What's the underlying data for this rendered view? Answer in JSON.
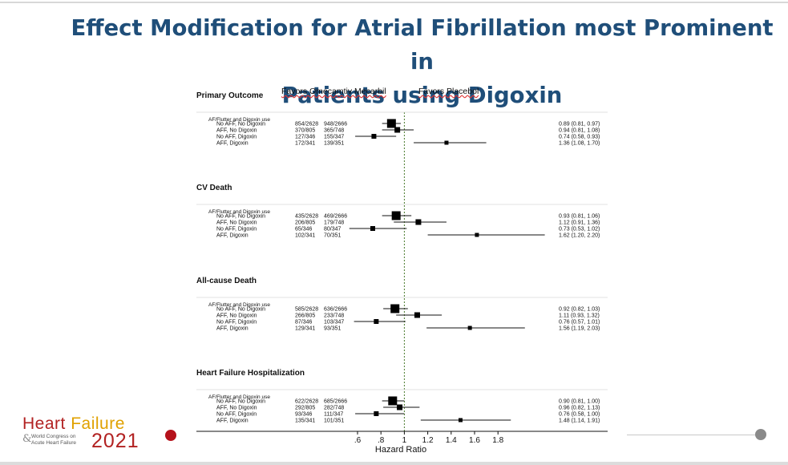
{
  "title": {
    "line1": "Effect Modification for Atrial Fibrillation most Prominent in",
    "line2": "Patients using Digoxin"
  },
  "favors_left": "Favors Omecamtiv Mecarbil",
  "favors_right": "Favors Placebol",
  "logo": {
    "heart": "Heart ",
    "failure": "Failure",
    "ampersand": "&",
    "wc_line1": "World Congress on",
    "wc_line2": "Acute Heart Failure",
    "year": "2021"
  },
  "colors": {
    "title": "#1f4e79",
    "logo_red": "#b22222",
    "logo_gold": "#e0a100",
    "reference_line": "#4a7a2c"
  },
  "chart_data": {
    "type": "forest",
    "xlabel": "Hazard Ratio",
    "xticks": [
      0.6,
      0.8,
      1,
      1.2,
      1.4,
      1.6,
      1.8
    ],
    "xtick_labels": [
      ".6",
      ".8",
      "1",
      "1.2",
      "1.4",
      "1.6",
      "1.8"
    ],
    "reference_value": 1,
    "panels": [
      {
        "title": "Primary Outcome",
        "group_label": "AF/Flutter and Digoxin use",
        "rows": [
          {
            "label": "No AFF, No Digoxin",
            "n1": "854/2628",
            "n2": "948/2666",
            "hr": 0.89,
            "lo": 0.81,
            "hi": 0.97,
            "ci_text": "0.89 (0.81, 0.97)"
          },
          {
            "label": "AFF, No Digoxin",
            "n1": "370/805",
            "n2": "365/748",
            "hr": 0.94,
            "lo": 0.81,
            "hi": 1.08,
            "ci_text": "0.94 (0.81, 1.08)"
          },
          {
            "label": "No AFF, Digoxin",
            "n1": "127/346",
            "n2": "155/347",
            "hr": 0.74,
            "lo": 0.58,
            "hi": 0.93,
            "ci_text": "0.74 (0.58, 0.93)"
          },
          {
            "label": "AFF, Digoxin",
            "n1": "172/341",
            "n2": "139/351",
            "hr": 1.36,
            "lo": 1.08,
            "hi": 1.7,
            "ci_text": "1.36 (1.08, 1.70)"
          }
        ]
      },
      {
        "title": "CV Death",
        "group_label": "AF/Flutter and Digoxin use",
        "rows": [
          {
            "label": "No AFF, No Digoxin",
            "n1": "435/2628",
            "n2": "469/2666",
            "hr": 0.93,
            "lo": 0.81,
            "hi": 1.06,
            "ci_text": "0.93 (0.81, 1.06)"
          },
          {
            "label": "AFF, No Digoxin",
            "n1": "206/805",
            "n2": "179/748",
            "hr": 1.12,
            "lo": 0.91,
            "hi": 1.36,
            "ci_text": "1.12 (0.91, 1.36)"
          },
          {
            "label": "No AFF, Digoxin",
            "n1": "65/346",
            "n2": "80/347",
            "hr": 0.73,
            "lo": 0.53,
            "hi": 1.02,
            "ci_text": "0.73 (0.53, 1.02)"
          },
          {
            "label": "AFF, Digoxin",
            "n1": "102/341",
            "n2": "70/351",
            "hr": 1.62,
            "lo": 1.2,
            "hi": 2.2,
            "ci_text": "1.62 (1.20, 2.20)"
          }
        ]
      },
      {
        "title": "All-cause Death",
        "group_label": "AF/Flutter and Digoxin use",
        "rows": [
          {
            "label": "No AFF, No Digoxin",
            "n1": "585/2628",
            "n2": "636/2666",
            "hr": 0.92,
            "lo": 0.82,
            "hi": 1.03,
            "ci_text": "0.92 (0.82, 1.03)"
          },
          {
            "label": "AFF, No Digoxin",
            "n1": "266/805",
            "n2": "233/748",
            "hr": 1.11,
            "lo": 0.93,
            "hi": 1.32,
            "ci_text": "1.11 (0.93, 1.32)"
          },
          {
            "label": "No AFF, Digoxin",
            "n1": "87/346",
            "n2": "103/347",
            "hr": 0.76,
            "lo": 0.57,
            "hi": 1.01,
            "ci_text": "0.76 (0.57, 1.01)"
          },
          {
            "label": "AFF, Digoxin",
            "n1": "129/341",
            "n2": "93/351",
            "hr": 1.56,
            "lo": 1.19,
            "hi": 2.03,
            "ci_text": "1.56 (1.19, 2.03)"
          }
        ]
      },
      {
        "title": "Heart Failure Hospitalization",
        "group_label": "AF/Flutter and Digoxin use",
        "rows": [
          {
            "label": "No AFF, No Digoxin",
            "n1": "622/2628",
            "n2": "685/2666",
            "hr": 0.9,
            "lo": 0.81,
            "hi": 1.0,
            "ci_text": "0.90 (0.81, 1.00)"
          },
          {
            "label": "AFF, No Digoxin",
            "n1": "292/805",
            "n2": "282/748",
            "hr": 0.96,
            "lo": 0.82,
            "hi": 1.13,
            "ci_text": "0.96 (0.82, 1.13)"
          },
          {
            "label": "No AFF, Digoxin",
            "n1": "93/346",
            "n2": "111/347",
            "hr": 0.76,
            "lo": 0.58,
            "hi": 1.0,
            "ci_text": "0.76 (0.58, 1.00)"
          },
          {
            "label": "AFF, Digoxin",
            "n1": "135/341",
            "n2": "101/351",
            "hr": 1.48,
            "lo": 1.14,
            "hi": 1.91,
            "ci_text": "1.48 (1.14, 1.91)"
          }
        ]
      }
    ]
  }
}
